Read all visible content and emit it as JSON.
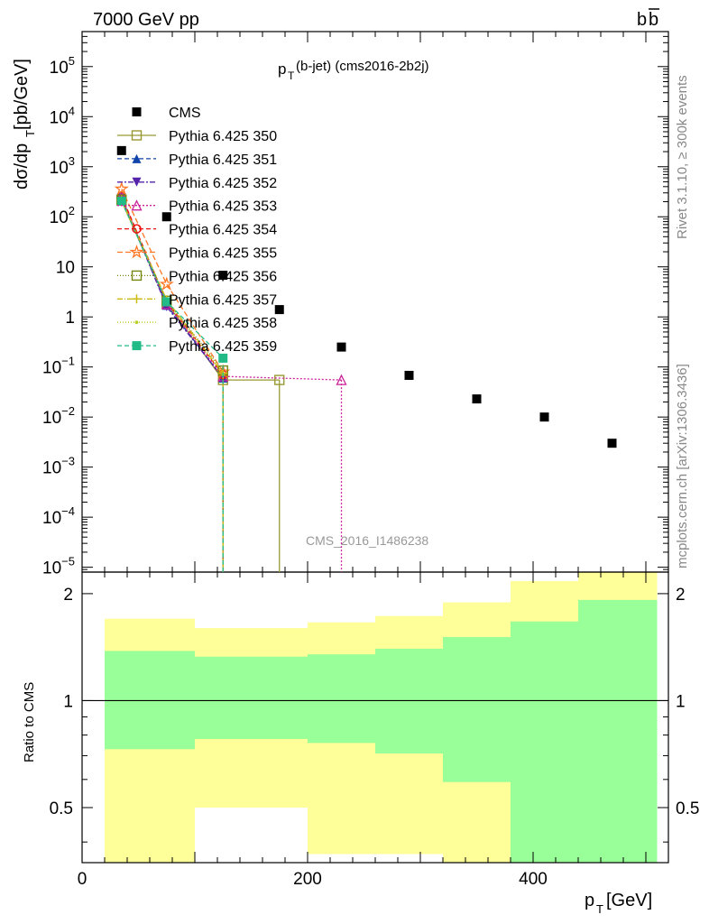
{
  "header": {
    "left": "7000 GeV pp",
    "right": "b",
    "right_bar": "b"
  },
  "side_labels": {
    "rivet": "Rivet 3.1.10, ≥ 300k events",
    "mcplots": "mcplots.cern.ch [arXiv:1306.3436]"
  },
  "chart_data": [
    {
      "type": "scatter",
      "title_main": "p",
      "title_sub": "T",
      "title_rest": "(b-jet) (cms2016-2b2j)",
      "ylabel": "dσ/dp_T [pb/GeV]",
      "ylabel_parts": {
        "a": "dσ/dp",
        "sub": "T",
        "b": " [pb/GeV]"
      },
      "watermark": "CMS_2016_I1486238",
      "y_scale": "log",
      "xlim": [
        0,
        520
      ],
      "ylim": [
        8e-06,
        500000.0
      ],
      "y_ticks": [
        {
          "v": 100000,
          "base": "10",
          "exp": "5"
        },
        {
          "v": 10000,
          "base": "10",
          "exp": "4"
        },
        {
          "v": 1000,
          "base": "10",
          "exp": "3"
        },
        {
          "v": 100,
          "base": "10",
          "exp": "2"
        },
        {
          "v": 10,
          "base": "10",
          "exp": ""
        },
        {
          "v": 1,
          "base": "1",
          "exp": ""
        },
        {
          "v": 0.1,
          "base": "10",
          "exp": "−1"
        },
        {
          "v": 0.01,
          "base": "10",
          "exp": "−2"
        },
        {
          "v": 0.001,
          "base": "10",
          "exp": "−3"
        },
        {
          "v": 0.0001,
          "base": "10",
          "exp": "−4"
        },
        {
          "v": 1e-05,
          "base": "10",
          "exp": "−5"
        }
      ],
      "cms": {
        "name": "CMS",
        "color": "#000000",
        "x": [
          35,
          75,
          125,
          175,
          230,
          290,
          350,
          410,
          470
        ],
        "y": [
          2100,
          100,
          6.8,
          1.4,
          0.25,
          0.068,
          0.023,
          0.01,
          0.003
        ]
      },
      "series": [
        {
          "name": "Pythia 6.425 350",
          "color": "#999933",
          "marker": "square-open",
          "dash": "",
          "x": [
            35,
            75,
            125,
            175
          ],
          "y": [
            210,
            1.9,
            0.055,
            0.055
          ],
          "drop_at": [
            125,
            175
          ]
        },
        {
          "name": "Pythia 6.425 351",
          "color": "#1144aa",
          "marker": "triangle-up",
          "dash": "5,3",
          "x": [
            35,
            75,
            125
          ],
          "y": [
            230,
            1.7,
            0.06
          ],
          "drop_at": [
            125
          ]
        },
        {
          "name": "Pythia 6.425 352",
          "color": "#5522aa",
          "marker": "triangle-down",
          "dash": "6,2,2,2",
          "x": [
            35,
            75,
            125
          ],
          "y": [
            240,
            1.6,
            0.06
          ],
          "drop_at": [
            125
          ]
        },
        {
          "name": "Pythia 6.425 353",
          "color": "#cc2299",
          "marker": "triangle-open",
          "dash": "2,2",
          "x": [
            35,
            75,
            125,
            230
          ],
          "y": [
            250,
            1.8,
            0.065,
            0.055
          ],
          "drop_at": [
            125,
            230
          ]
        },
        {
          "name": "Pythia 6.425 354",
          "color": "#ee1111",
          "marker": "circle-open",
          "dash": "5,3",
          "x": [
            35,
            75,
            125
          ],
          "y": [
            260,
            2.0,
            0.07
          ],
          "drop_at": [
            125
          ]
        },
        {
          "name": "Pythia 6.425 355",
          "color": "#ff7722",
          "marker": "star",
          "dash": "6,3",
          "x": [
            35,
            75,
            125
          ],
          "y": [
            360,
            4.5,
            0.08
          ],
          "drop_at": [
            125
          ]
        },
        {
          "name": "Pythia 6.425 356",
          "color": "#778811",
          "marker": "square-open",
          "dash": "1,2",
          "x": [
            35,
            75,
            125
          ],
          "y": [
            220,
            2.1,
            0.085
          ],
          "drop_at": [
            125
          ]
        },
        {
          "name": "Pythia 6.425 357",
          "color": "#ccbb11",
          "marker": "cross",
          "dash": "6,2,1,2",
          "x": [
            35,
            75,
            125
          ],
          "y": [
            215,
            2.2,
            0.075
          ],
          "drop_at": [
            125
          ]
        },
        {
          "name": "Pythia 6.425 358",
          "color": "#bbcc22",
          "marker": "dot",
          "dash": "1,2",
          "x": [
            35,
            75,
            125
          ],
          "y": [
            200,
            2.0,
            0.07
          ],
          "drop_at": [
            125
          ]
        },
        {
          "name": "Pythia 6.425 359",
          "color": "#22bb88",
          "marker": "square",
          "dash": "5,3",
          "x": [
            35,
            75,
            125
          ],
          "y": [
            205,
            2.0,
            0.15
          ],
          "drop_at": [
            125
          ]
        }
      ]
    },
    {
      "type": "area",
      "ylabel": "Ratio to CMS",
      "xlabel": "p_T [GeV]",
      "xlabel_parts": {
        "a": "p",
        "sub": "T",
        "b": " [GeV]"
      },
      "xlim": [
        0,
        520
      ],
      "ylim": [
        0.35,
        2.3
      ],
      "y_ticks": [
        "0.5",
        "1",
        "2"
      ],
      "y_tick_values": [
        0.5,
        1,
        2
      ],
      "x_ticks": [
        "0",
        "200",
        "400"
      ],
      "x_tick_values": [
        0,
        200,
        400
      ],
      "bins": [
        {
          "lo": 20,
          "hi": 100,
          "y_lo": 0.35,
          "y_hi": 1.7,
          "g_lo": 0.73,
          "g_hi": 1.38
        },
        {
          "lo": 100,
          "hi": 200,
          "y_lo": 0.5,
          "y_hi": 1.6,
          "g_lo": 0.78,
          "g_hi": 1.33
        },
        {
          "lo": 200,
          "hi": 260,
          "y_lo": 0.37,
          "y_hi": 1.66,
          "g_lo": 0.76,
          "g_hi": 1.35
        },
        {
          "lo": 260,
          "hi": 320,
          "y_lo": 0.37,
          "y_hi": 1.73,
          "g_lo": 0.71,
          "g_hi": 1.4
        },
        {
          "lo": 320,
          "hi": 380,
          "y_lo": 0.35,
          "y_hi": 1.89,
          "g_lo": 0.59,
          "g_hi": 1.51
        },
        {
          "lo": 380,
          "hi": 440,
          "y_lo": 0.35,
          "y_hi": 2.17,
          "g_lo": 0.35,
          "g_hi": 1.67
        },
        {
          "lo": 440,
          "hi": 510,
          "y_lo": 0.35,
          "y_hi": 2.3,
          "g_lo": 0.35,
          "g_hi": 1.92
        }
      ],
      "yellow": "#ffff99",
      "green": "#99ff99"
    }
  ]
}
